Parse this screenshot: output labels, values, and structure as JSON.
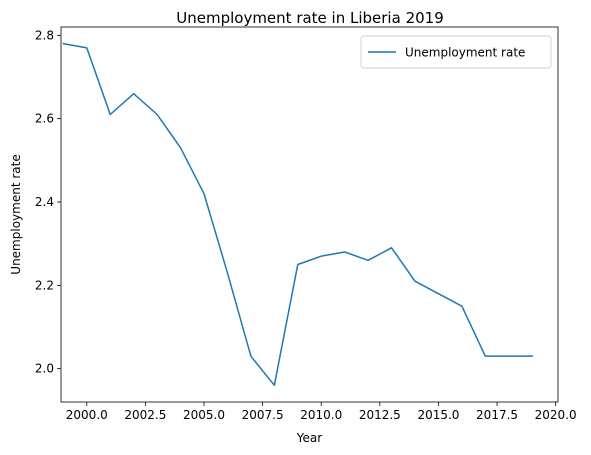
{
  "chart_data": {
    "type": "line",
    "title": "Unemployment rate in Liberia 2019",
    "xlabel": "Year",
    "ylabel": "Unemployment rate",
    "xlim": [
      1998.9,
      2020.1
    ],
    "ylim": [
      1.92,
      2.82
    ],
    "x_ticks": [
      2000.0,
      2002.5,
      2005.0,
      2007.5,
      2010.0,
      2012.5,
      2015.0,
      2017.5,
      2020.0
    ],
    "x_tick_labels": [
      "2000.0",
      "2002.5",
      "2005.0",
      "2007.5",
      "2010.0",
      "2012.5",
      "2015.0",
      "2017.5",
      "2020.0"
    ],
    "y_ticks": [
      2.0,
      2.2,
      2.4,
      2.6,
      2.8
    ],
    "y_tick_labels": [
      "2.0",
      "2.2",
      "2.4",
      "2.6",
      "2.8"
    ],
    "grid": false,
    "legend_position": "top-right",
    "series": [
      {
        "name": "Unemployment rate",
        "color": "#1f77b4",
        "x": [
          1999,
          2000,
          2001,
          2002,
          2003,
          2004,
          2005,
          2006,
          2007,
          2008,
          2009,
          2010,
          2011,
          2012,
          2013,
          2014,
          2015,
          2016,
          2017,
          2018,
          2019
        ],
        "y": [
          2.78,
          2.77,
          2.61,
          2.66,
          2.61,
          2.53,
          2.42,
          2.23,
          2.03,
          1.96,
          2.25,
          2.27,
          2.28,
          2.26,
          2.29,
          2.21,
          2.18,
          2.15,
          2.03,
          2.03,
          2.03
        ]
      }
    ]
  }
}
